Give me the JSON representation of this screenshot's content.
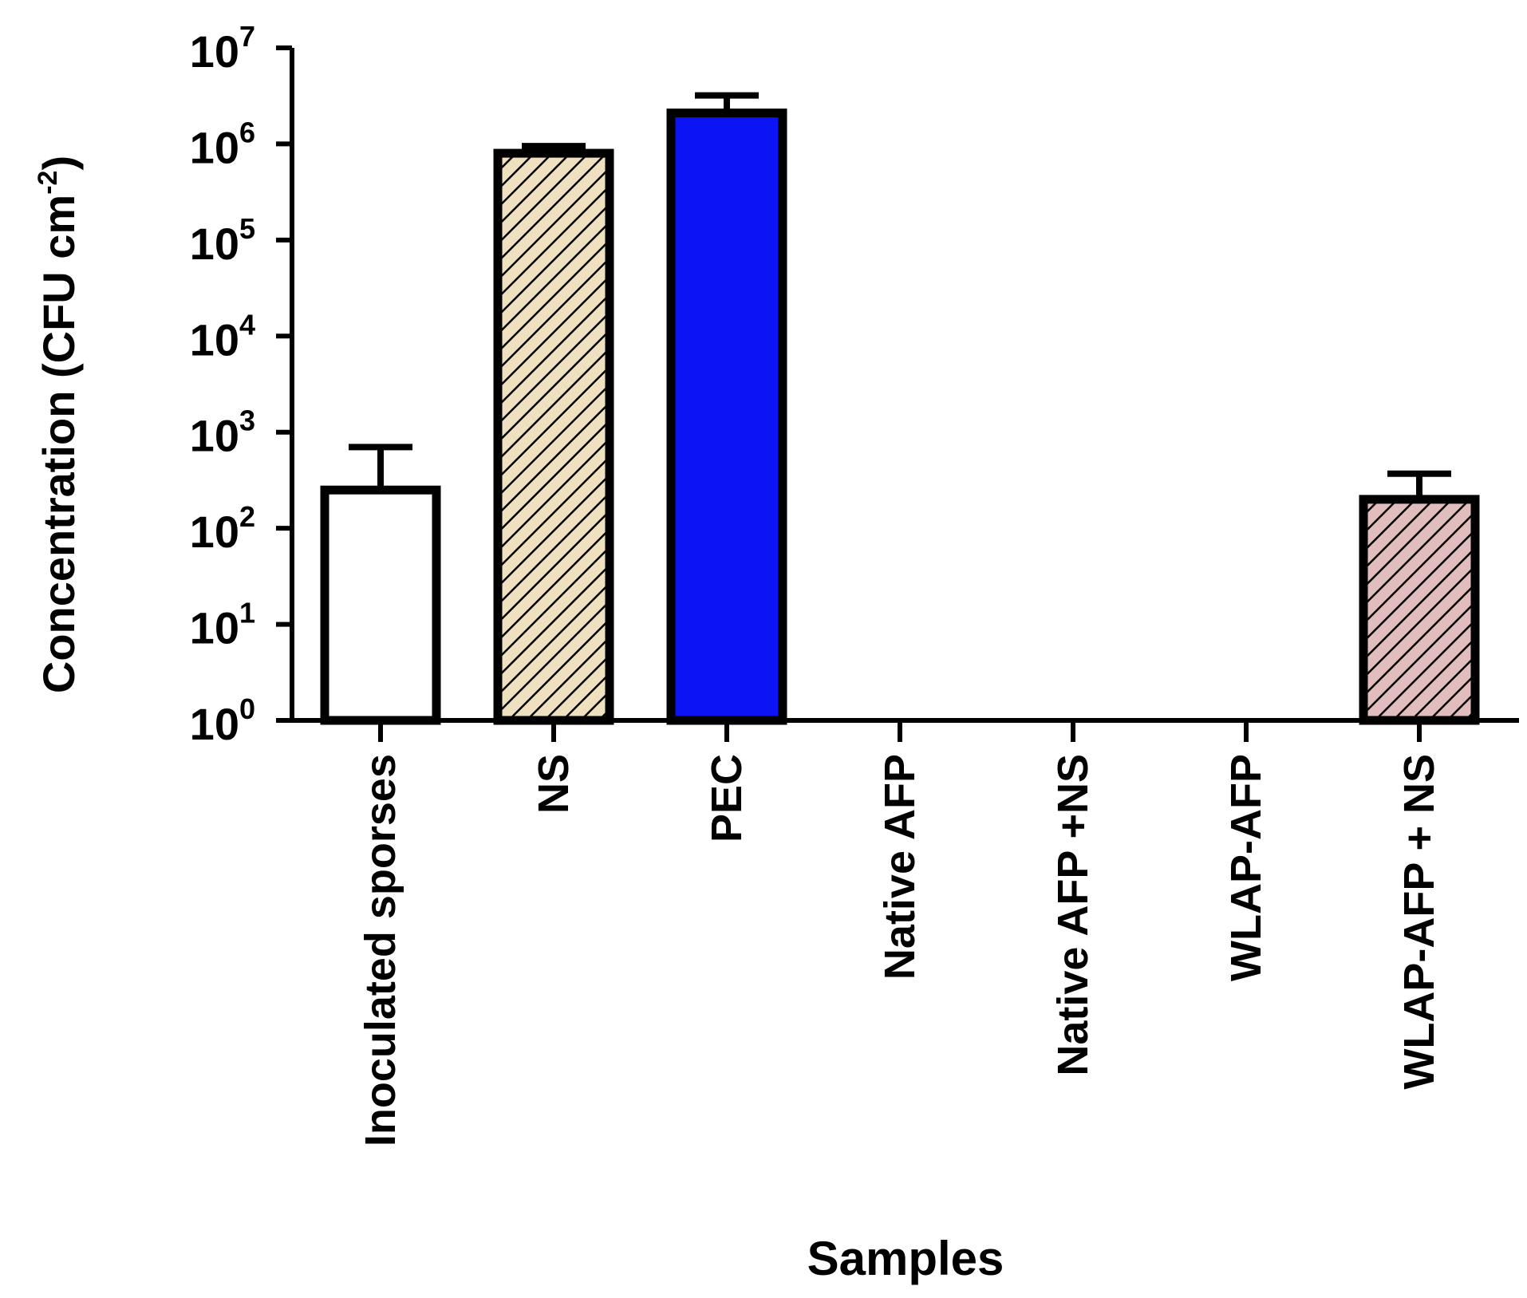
{
  "chart_data": {
    "type": "bar",
    "title": "",
    "xlabel": "Samples",
    "ylabel": {
      "main": "Concentration (CFU cm",
      "superscript": "-2",
      "close": ")"
    },
    "y_scale": "log10",
    "ylim": [
      1,
      10000000
    ],
    "y_ticks": [
      {
        "base": "10",
        "exp": "0",
        "value": 1
      },
      {
        "base": "10",
        "exp": "1",
        "value": 10
      },
      {
        "base": "10",
        "exp": "2",
        "value": 100
      },
      {
        "base": "10",
        "exp": "3",
        "value": 1000
      },
      {
        "base": "10",
        "exp": "4",
        "value": 10000
      },
      {
        "base": "10",
        "exp": "5",
        "value": 100000
      },
      {
        "base": "10",
        "exp": "6",
        "value": 1000000
      },
      {
        "base": "10",
        "exp": "7",
        "value": 10000000
      }
    ],
    "categories": [
      "Inoculated sporses",
      "NS",
      "PEC",
      "Native AFP",
      "Native AFP +NS",
      "WLAP-AFP",
      "WLAP-AFP + NS"
    ],
    "values": [
      250,
      800000,
      2100000,
      null,
      null,
      null,
      200
    ],
    "error_upper": [
      700,
      950000,
      3200000,
      null,
      null,
      null,
      370
    ],
    "bar_styles": [
      {
        "fill": "#ffffff",
        "hatch": false
      },
      {
        "fill": "#efe1c0",
        "hatch": true
      },
      {
        "fill": "#0a14f5",
        "hatch": false
      },
      {
        "fill": "#ffffff",
        "hatch": false
      },
      {
        "fill": "#ffffff",
        "hatch": false
      },
      {
        "fill": "#ffffff",
        "hatch": false
      },
      {
        "fill": "#e2bdbd",
        "hatch": true
      }
    ],
    "grid": false,
    "legend": "none"
  }
}
